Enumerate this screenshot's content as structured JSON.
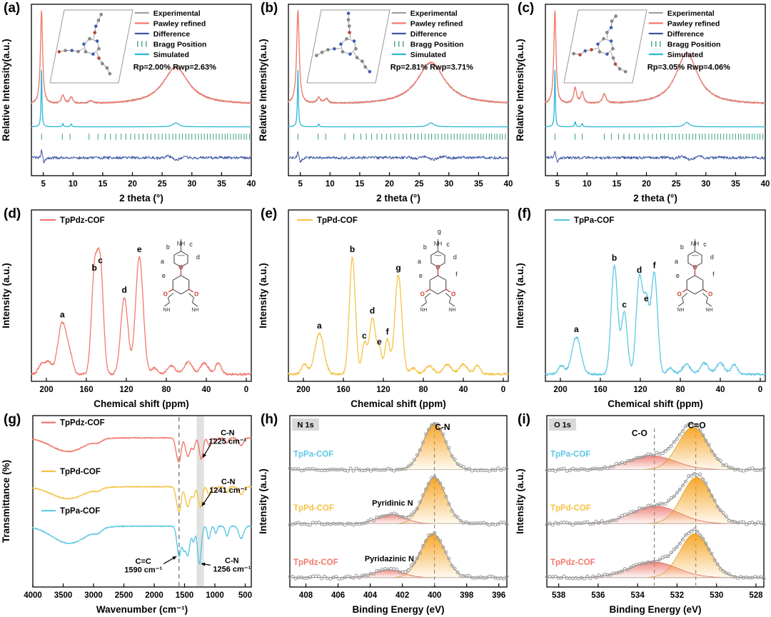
{
  "colors": {
    "experimental": "#a0a0a0",
    "refined": "#f2796b",
    "difference": "#3c55a5",
    "bragg": "#36a06e",
    "simulated": "#2ab7d8",
    "tppdz": "#f2796b",
    "tppd": "#f6c244",
    "tppa": "#5cc8e4",
    "xps_fill": "#f6a21e",
    "xps_sub": "#ee7b70",
    "axis": "#000000",
    "tag_bg": "#d9d9d9"
  },
  "chart_data": [
    {
      "panel_label": "(a)",
      "kind": "xrd",
      "type": "line",
      "xlabel": "2 theta (°)",
      "ylabel": "Relative Intensity(a.u.)",
      "xlim": [
        3,
        40
      ],
      "xticks": [
        5,
        10,
        15,
        20,
        25,
        30,
        35,
        40
      ],
      "legend": [
        {
          "label": "Experimental",
          "color_key": "experimental",
          "marker": "line"
        },
        {
          "label": "Pawley refined",
          "color_key": "refined",
          "marker": "line"
        },
        {
          "label": "Difference",
          "color_key": "difference",
          "marker": "line"
        },
        {
          "label": "Bragg Position",
          "color_key": "bragg",
          "marker": "ticks"
        },
        {
          "label": "Simulated",
          "color_key": "simulated",
          "marker": "line"
        }
      ],
      "annotation": "Rp=2.00% Rwp=2.63%",
      "exp_peaks": [
        [
          4.7,
          1.0,
          0.22
        ],
        [
          8.3,
          0.09,
          0.3
        ],
        [
          9.7,
          0.07,
          0.3
        ],
        [
          13.0,
          0.03,
          0.4
        ],
        [
          27.3,
          0.4,
          2.6
        ]
      ],
      "sim_peaks": [
        [
          4.7,
          1.0,
          0.09
        ],
        [
          8.3,
          0.06,
          0.12
        ],
        [
          9.7,
          0.05,
          0.12
        ],
        [
          27.3,
          0.07,
          0.6
        ]
      ],
      "bragg_positions": [
        4.7,
        8.2,
        9.5,
        12.7,
        14.2,
        15.4,
        16.3,
        17.2,
        18.1,
        18.9,
        19.7,
        20.4,
        21.1,
        21.8,
        22.5,
        23.1,
        23.8,
        24.4,
        25.0,
        25.6,
        26.2,
        26.8,
        27.3,
        27.9,
        28.4,
        29.0,
        29.5,
        30.0,
        30.6,
        31.1,
        31.6,
        32.1,
        32.6,
        33.1,
        33.6,
        34.1,
        34.6,
        35.1,
        35.6,
        36.0,
        36.5,
        37.0,
        37.4,
        37.9,
        38.3,
        38.8,
        39.2,
        39.7
      ]
    },
    {
      "panel_label": "(b)",
      "kind": "xrd",
      "type": "line",
      "xlabel": "2 theta (°)",
      "ylabel": "Relative Intensity(a.u.)",
      "xlim": [
        3,
        40
      ],
      "xticks": [
        5,
        10,
        15,
        20,
        25,
        30,
        35,
        40
      ],
      "legend": [
        {
          "label": "Experimental",
          "color_key": "experimental",
          "marker": "line"
        },
        {
          "label": "Pawley refined",
          "color_key": "refined",
          "marker": "line"
        },
        {
          "label": "Difference",
          "color_key": "difference",
          "marker": "line"
        },
        {
          "label": "Bragg Position",
          "color_key": "bragg",
          "marker": "ticks"
        },
        {
          "label": "Simulated",
          "color_key": "simulated",
          "marker": "line"
        }
      ],
      "annotation": "Rp=2.81% Rwp=3.71%",
      "exp_peaks": [
        [
          4.6,
          1.0,
          0.26
        ],
        [
          8.1,
          0.06,
          0.35
        ],
        [
          9.4,
          0.05,
          0.35
        ],
        [
          27.0,
          0.45,
          2.8
        ]
      ],
      "sim_peaks": [
        [
          4.6,
          1.0,
          0.1
        ],
        [
          8.1,
          0.05,
          0.12
        ],
        [
          27.0,
          0.07,
          0.6
        ]
      ],
      "bragg_positions": [
        4.6,
        8.0,
        9.3,
        12.5,
        14.0,
        15.2,
        16.1,
        17.0,
        17.9,
        18.7,
        19.5,
        20.2,
        20.9,
        21.6,
        22.3,
        22.9,
        23.6,
        24.2,
        24.8,
        25.4,
        26.0,
        26.6,
        27.1,
        27.7,
        28.2,
        28.8,
        29.3,
        29.8,
        30.4,
        30.9,
        31.4,
        31.9,
        32.4,
        32.9,
        33.4,
        33.9,
        34.4,
        34.9,
        35.4,
        35.8,
        36.3,
        36.8,
        37.2,
        37.7,
        38.1,
        38.6,
        39.0,
        39.5
      ]
    },
    {
      "panel_label": "(c)",
      "kind": "xrd",
      "type": "line",
      "xlabel": "2 theta (°)",
      "ylabel": "Relative Intensity(a.u.)",
      "xlim": [
        3,
        40
      ],
      "xticks": [
        5,
        10,
        15,
        20,
        25,
        30,
        35,
        40
      ],
      "legend": [
        {
          "label": "Experimental",
          "color_key": "experimental",
          "marker": "line"
        },
        {
          "label": "Pawley refined",
          "color_key": "refined",
          "marker": "line"
        },
        {
          "label": "Difference",
          "color_key": "difference",
          "marker": "line"
        },
        {
          "label": "Bragg Position",
          "color_key": "bragg",
          "marker": "ticks"
        },
        {
          "label": "Simulated",
          "color_key": "simulated",
          "marker": "line"
        }
      ],
      "annotation": "Rp=3.05% Rwp=4.06%",
      "exp_peaks": [
        [
          4.6,
          1.0,
          0.22
        ],
        [
          8.0,
          0.17,
          0.28
        ],
        [
          9.2,
          0.12,
          0.28
        ],
        [
          12.9,
          0.1,
          0.35
        ],
        [
          26.8,
          0.55,
          2.2
        ]
      ],
      "sim_peaks": [
        [
          4.6,
          1.0,
          0.09
        ],
        [
          8.0,
          0.09,
          0.12
        ],
        [
          9.2,
          0.06,
          0.12
        ],
        [
          26.8,
          0.08,
          0.5
        ]
      ],
      "bragg_positions": [
        4.6,
        8.0,
        9.2,
        12.9,
        14.1,
        15.3,
        16.2,
        17.1,
        18.0,
        18.8,
        19.6,
        20.3,
        21.0,
        21.7,
        22.4,
        23.0,
        23.7,
        24.3,
        24.9,
        25.5,
        26.1,
        26.7,
        27.2,
        27.8,
        28.3,
        28.9,
        29.4,
        29.9,
        30.5,
        31.0,
        31.5,
        32.0,
        32.5,
        33.0,
        33.5,
        34.0,
        34.5,
        35.0,
        35.5,
        35.9,
        36.4,
        36.9,
        37.3,
        37.8,
        38.2,
        38.7,
        39.1,
        39.6
      ]
    },
    {
      "panel_label": "(d)",
      "kind": "nmr",
      "type": "line",
      "name": "TpPdz-COF",
      "color_key": "tppdz",
      "xlabel": "Chemical shift (ppm)",
      "ylabel": "Intensity (a.u.)",
      "xlim": [
        215,
        -5
      ],
      "xticks": [
        200,
        160,
        120,
        80,
        40,
        0
      ],
      "peaks": [
        {
          "label": "a",
          "x": 184,
          "h": 0.42,
          "w": 4.5
        },
        {
          "label": "b",
          "x": 152,
          "h": 0.8,
          "w": 3.0
        },
        {
          "label": "c",
          "x": 146,
          "h": 0.86,
          "w": 3.0
        },
        {
          "label": "d",
          "x": 122,
          "h": 0.62,
          "w": 3.6
        },
        {
          "label": "e",
          "x": 107,
          "h": 0.95,
          "w": 3.8
        }
      ],
      "minor_peaks": [
        [
          205,
          0.08,
          3
        ],
        [
          198,
          0.1,
          3
        ],
        [
          176,
          0.1,
          3
        ],
        [
          92,
          0.05,
          3
        ],
        [
          75,
          0.07,
          4
        ],
        [
          58,
          0.1,
          4
        ],
        [
          42,
          0.09,
          4
        ],
        [
          28,
          0.09,
          3
        ]
      ]
    },
    {
      "panel_label": "(e)",
      "kind": "nmr",
      "type": "line",
      "name": "TpPd-COF",
      "color_key": "tppd",
      "xlabel": "Chemical shift (ppm)",
      "ylabel": "Intensity (a.u.)",
      "xlim": [
        215,
        -5
      ],
      "xticks": [
        200,
        160,
        120,
        80,
        40,
        0
      ],
      "peaks": [
        {
          "label": "a",
          "x": 184,
          "h": 0.33,
          "w": 4.5
        },
        {
          "label": "b",
          "x": 151,
          "h": 0.95,
          "w": 3.0
        },
        {
          "label": "c",
          "x": 139,
          "h": 0.25,
          "w": 2.5
        },
        {
          "label": "d",
          "x": 131,
          "h": 0.45,
          "w": 3.0
        },
        {
          "label": "e",
          "x": 124,
          "h": 0.2,
          "w": 2.5
        },
        {
          "label": "f",
          "x": 116,
          "h": 0.28,
          "w": 2.5
        },
        {
          "label": "g",
          "x": 105,
          "h": 0.8,
          "w": 3.5
        }
      ],
      "minor_peaks": [
        [
          199,
          0.08,
          3
        ],
        [
          90,
          0.05,
          3
        ],
        [
          74,
          0.07,
          4
        ],
        [
          56,
          0.08,
          4
        ],
        [
          40,
          0.08,
          4
        ],
        [
          26,
          0.07,
          3
        ]
      ]
    },
    {
      "panel_label": "(f)",
      "kind": "nmr",
      "type": "line",
      "name": "TpPa-COF",
      "color_key": "tppa",
      "xlabel": "Chemical shift (ppm)",
      "ylabel": "Intensity (a.u.)",
      "xlim": [
        215,
        -5
      ],
      "xticks": [
        200,
        160,
        120,
        80,
        40,
        0
      ],
      "peaks": [
        {
          "label": "a",
          "x": 184,
          "h": 0.3,
          "w": 4.5
        },
        {
          "label": "b",
          "x": 146,
          "h": 0.88,
          "w": 3.2
        },
        {
          "label": "c",
          "x": 136,
          "h": 0.5,
          "w": 3.0
        },
        {
          "label": "d",
          "x": 121,
          "h": 0.78,
          "w": 3.2
        },
        {
          "label": "e",
          "x": 114,
          "h": 0.55,
          "w": 2.8
        },
        {
          "label": "f",
          "x": 106,
          "h": 0.82,
          "w": 3.2
        }
      ],
      "minor_peaks": [
        [
          199,
          0.07,
          3
        ],
        [
          90,
          0.05,
          3
        ],
        [
          74,
          0.08,
          4
        ],
        [
          56,
          0.09,
          4
        ],
        [
          40,
          0.09,
          4
        ],
        [
          26,
          0.08,
          3
        ]
      ]
    },
    {
      "panel_label": "(g)",
      "kind": "ftir",
      "type": "line",
      "xlabel": "Wavenumber (cm⁻¹)",
      "ylabel": "Transmittance (%)",
      "xlim": [
        4000,
        400
      ],
      "xticks": [
        4000,
        3500,
        3000,
        2500,
        2000,
        1500,
        1000,
        500
      ],
      "band": [
        1300,
        1180
      ],
      "dashed_x": 1590,
      "traces": [
        {
          "name": "TpPdz-COF",
          "color_key": "tppdz",
          "base": 0.13,
          "scale": 0.2,
          "dips": [
            [
              3420,
              0.4,
              270
            ],
            [
              2925,
              0.08,
              60
            ],
            [
              1617,
              0.5,
              32
            ],
            [
              1574,
              0.42,
              26
            ],
            [
              1443,
              0.55,
              38
            ],
            [
              1352,
              0.3,
              26
            ],
            [
              1225,
              0.62,
              30
            ],
            [
              1096,
              0.22,
              24
            ],
            [
              988,
              0.12,
              20
            ],
            [
              808,
              0.16,
              26
            ],
            [
              566,
              0.22,
              40
            ]
          ]
        },
        {
          "name": "TpPd-COF",
          "color_key": "tppd",
          "base": 0.415,
          "scale": 0.2,
          "dips": [
            [
              3420,
              0.35,
              270
            ],
            [
              2925,
              0.07,
              60
            ],
            [
              1612,
              0.5,
              32
            ],
            [
              1574,
              0.4,
              26
            ],
            [
              1448,
              0.58,
              38
            ],
            [
              1355,
              0.28,
              26
            ],
            [
              1241,
              0.6,
              30
            ],
            [
              1100,
              0.22,
              24
            ],
            [
              985,
              0.12,
              20
            ],
            [
              806,
              0.16,
              26
            ],
            [
              566,
              0.22,
              40
            ]
          ]
        },
        {
          "name": "TpPa-COF",
          "color_key": "tppa",
          "base": 0.645,
          "scale": 0.285,
          "dips": [
            [
              3400,
              0.35,
              280
            ],
            [
              2925,
              0.07,
              60
            ],
            [
              1590,
              0.62,
              34
            ],
            [
              1515,
              0.35,
              24
            ],
            [
              1448,
              0.6,
              36
            ],
            [
              1352,
              0.3,
              24
            ],
            [
              1256,
              0.78,
              30
            ],
            [
              1100,
              0.26,
              24
            ],
            [
              985,
              0.15,
              20
            ],
            [
              800,
              0.2,
              26
            ],
            [
              566,
              0.25,
              40
            ]
          ]
        }
      ],
      "annotations": [
        {
          "lines": [
            "C-N",
            "1225 cm⁻¹"
          ],
          "text_x": 790,
          "text_yfrac": 0.115,
          "target_x": 1228,
          "trace": 0
        },
        {
          "lines": [
            "C-N",
            "1241 cm⁻¹"
          ],
          "text_x": 780,
          "text_yfrac": 0.4,
          "target_x": 1243,
          "trace": 1
        },
        {
          "lines": [
            "C=C",
            "1590 cm⁻¹"
          ],
          "text_x": 2180,
          "text_yfrac": 0.865,
          "target_x": 1598,
          "trace": 2
        },
        {
          "lines": [
            "C-N",
            "1256 cm⁻¹"
          ],
          "text_x": 720,
          "text_yfrac": 0.86,
          "target_x": 1262,
          "trace": 2
        }
      ]
    },
    {
      "panel_label": "(h)",
      "kind": "xps",
      "type": "line",
      "tag": "N 1s",
      "xlabel": "Binding Energy (eV)",
      "ylabel": "Intensity (a.u.)",
      "xlim": [
        409,
        395.5
      ],
      "xticks": [
        408,
        406,
        404,
        402,
        400,
        398,
        396
      ],
      "dashed_lines": [
        400
      ],
      "top_annotations": [
        {
          "text": "C-N",
          "x": 399.5,
          "yfrac": 0.05
        }
      ],
      "spectra": [
        {
          "name": "TpPa-COF",
          "color_key": "tppa",
          "main": {
            "x": 400.0,
            "h": 1.0,
            "w": 0.7
          },
          "subs": []
        },
        {
          "name": "TpPd-COF",
          "color_key": "tppd",
          "main": {
            "x": 400.0,
            "h": 1.0,
            "w": 0.7
          },
          "subs": [
            {
              "x": 402.7,
              "h": 0.2,
              "w": 0.85,
              "label": "Pyridinic N"
            }
          ]
        },
        {
          "name": "TpPdz-COF",
          "color_key": "tppdz",
          "main": {
            "x": 400.1,
            "h": 0.95,
            "w": 0.75
          },
          "subs": [
            {
              "x": 402.9,
              "h": 0.17,
              "w": 0.9,
              "label": "Pyridazinic N"
            }
          ]
        }
      ]
    },
    {
      "panel_label": "(i)",
      "kind": "xps",
      "type": "line",
      "tag": "O 1s",
      "xlabel": "Binding Energy (eV)",
      "ylabel": "Intensity (a.u.)",
      "xlim": [
        538.6,
        527.6
      ],
      "xticks": [
        538,
        536,
        534,
        532,
        530,
        528
      ],
      "dashed_lines": [
        533.15,
        531.05
      ],
      "top_annotations": [
        {
          "text": "C-O",
          "x": 533.9,
          "yfrac": 0.085
        },
        {
          "text": "C=O",
          "x": 531.0,
          "yfrac": 0.04
        }
      ],
      "spectra": [
        {
          "name": "TpPa-COF",
          "color_key": "tppa",
          "main": {
            "x": 531.2,
            "h": 0.92,
            "w": 0.75
          },
          "subs": [
            {
              "x": 533.3,
              "h": 0.3,
              "w": 1.2
            }
          ]
        },
        {
          "name": "TpPd-COF",
          "color_key": "tppd",
          "main": {
            "x": 531.0,
            "h": 1.0,
            "w": 0.75
          },
          "subs": [
            {
              "x": 533.1,
              "h": 0.38,
              "w": 1.2
            }
          ]
        },
        {
          "name": "TpPdz-COF",
          "color_key": "tppdz",
          "main": {
            "x": 531.1,
            "h": 0.95,
            "w": 0.75
          },
          "subs": [
            {
              "x": 533.2,
              "h": 0.34,
              "w": 1.2
            }
          ]
        }
      ]
    }
  ]
}
